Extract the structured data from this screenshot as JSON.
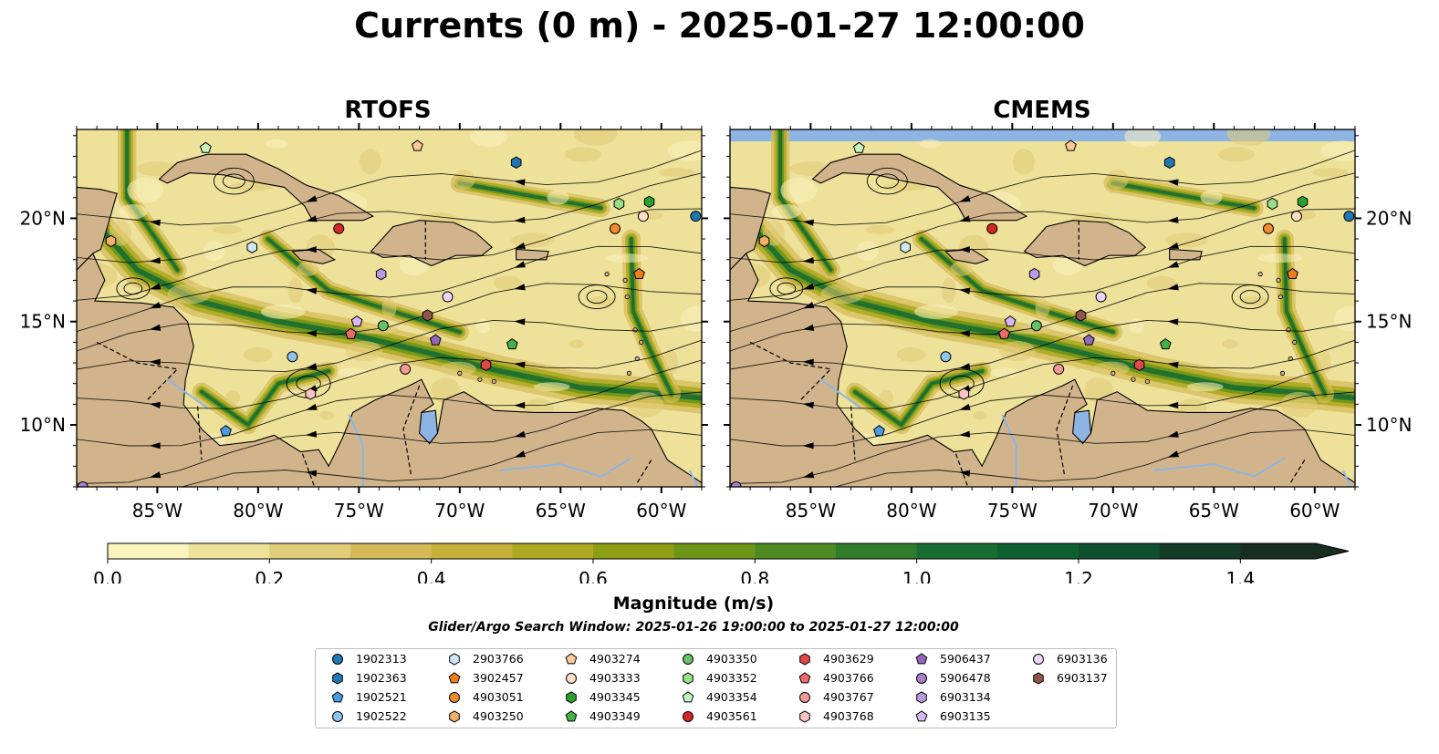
{
  "title": "Currents (0 m) - 2025-01-27 12:00:00",
  "panels": [
    {
      "title": "RTOFS"
    },
    {
      "title": "CMEMS"
    }
  ],
  "axes": {
    "lon_ticks": [
      "85°W",
      "80°W",
      "75°W",
      "70°W",
      "65°W",
      "60°W"
    ],
    "lat_ticks": [
      "20°N",
      "15°N",
      "10°N"
    ]
  },
  "colorbar": {
    "label": "Magnitude (m/s)",
    "ticks": [
      "0.0",
      "0.2",
      "0.4",
      "0.6",
      "0.8",
      "1.0",
      "1.2",
      "1.4"
    ],
    "range": [
      0,
      1.5
    ],
    "extend": "max",
    "colors": [
      "#fbf3bd",
      "#eee19a",
      "#e1cc79",
      "#d4bb58",
      "#c5b03a",
      "#aeaa24",
      "#8e9f16",
      "#6d9518",
      "#4d8a22",
      "#2f7c2a",
      "#186d31",
      "#0e5f32",
      "#0f4e2e",
      "#143d28",
      "#172e21"
    ]
  },
  "window_text": "Glider/Argo Search Window: 2025-01-26 19:00:00 to 2025-01-27 12:00:00",
  "chart_data": {
    "type": "map",
    "region": "Caribbean Sea",
    "lon_range": [
      -89,
      -58
    ],
    "lat_range": [
      7,
      24.3
    ],
    "variable": "surface current magnitude (m/s)",
    "platforms": [
      {
        "id": "1902313",
        "marker": "circle",
        "color": "#1f77b4",
        "lon": -58.3,
        "lat": 20.1
      },
      {
        "id": "1902363",
        "marker": "hexagon",
        "color": "#1f77b4",
        "lon": -67.2,
        "lat": 22.7
      },
      {
        "id": "1902521",
        "marker": "pentagon",
        "color": "#4a9be0",
        "lon": -81.6,
        "lat": 9.7
      },
      {
        "id": "1902522",
        "marker": "circle",
        "color": "#8fc3e8",
        "lon": -78.3,
        "lat": 13.3
      },
      {
        "id": "2903766",
        "marker": "hexagon",
        "color": "#cfe8f8",
        "lon": -80.3,
        "lat": 18.6
      },
      {
        "id": "3902457",
        "marker": "pentagon",
        "color": "#f07f1a",
        "lon": -61.1,
        "lat": 17.3
      },
      {
        "id": "4903051",
        "marker": "circle",
        "color": "#f28a2e",
        "lon": -62.3,
        "lat": 19.5
      },
      {
        "id": "4903250",
        "marker": "hexagon",
        "color": "#f5ad68",
        "lon": -87.3,
        "lat": 18.9
      },
      {
        "id": "4903274",
        "marker": "pentagon",
        "color": "#f9c99a",
        "lon": -72.1,
        "lat": 23.5
      },
      {
        "id": "4903333",
        "marker": "circle",
        "color": "#fde0c5",
        "lon": -60.9,
        "lat": 20.1
      },
      {
        "id": "4903345",
        "marker": "hexagon",
        "color": "#2ca02c",
        "lon": -60.6,
        "lat": 20.8
      },
      {
        "id": "4903349",
        "marker": "pentagon",
        "color": "#44b144",
        "lon": -67.4,
        "lat": 13.9
      },
      {
        "id": "4903350",
        "marker": "circle",
        "color": "#66c266",
        "lon": -73.8,
        "lat": 14.8
      },
      {
        "id": "4903352",
        "marker": "hexagon",
        "color": "#98df8a",
        "lon": -62.1,
        "lat": 20.7
      },
      {
        "id": "4903354",
        "marker": "pentagon",
        "color": "#c8f3be",
        "lon": -82.6,
        "lat": 23.4
      },
      {
        "id": "4903561",
        "marker": "circle",
        "color": "#d62728",
        "lon": -76.0,
        "lat": 19.5
      },
      {
        "id": "4903629",
        "marker": "hexagon",
        "color": "#e04848",
        "lon": -68.7,
        "lat": 12.9
      },
      {
        "id": "4903766",
        "marker": "pentagon",
        "color": "#ec6a6a",
        "lon": -75.4,
        "lat": 14.4
      },
      {
        "id": "4903767",
        "marker": "circle",
        "color": "#f29a9a",
        "lon": -72.7,
        "lat": 12.7
      },
      {
        "id": "4903768",
        "marker": "hexagon",
        "color": "#fbc3c3",
        "lon": -77.4,
        "lat": 11.5
      },
      {
        "id": "5906437",
        "marker": "pentagon",
        "color": "#9467bd",
        "lon": -71.2,
        "lat": 14.1
      },
      {
        "id": "5906478",
        "marker": "circle",
        "color": "#a780cf",
        "lon": -88.7,
        "lat": 7.0
      },
      {
        "id": "6903134",
        "marker": "hexagon",
        "color": "#b89ae0",
        "lon": -73.9,
        "lat": 17.3
      },
      {
        "id": "6903135",
        "marker": "pentagon",
        "color": "#d6b8f2",
        "lon": -75.1,
        "lat": 15.0
      },
      {
        "id": "6903136",
        "marker": "circle",
        "color": "#ecd5fa",
        "lon": -70.6,
        "lat": 16.2
      },
      {
        "id": "6903137",
        "marker": "hexagon",
        "color": "#8c564b",
        "lon": -71.6,
        "lat": 15.3
      }
    ]
  }
}
